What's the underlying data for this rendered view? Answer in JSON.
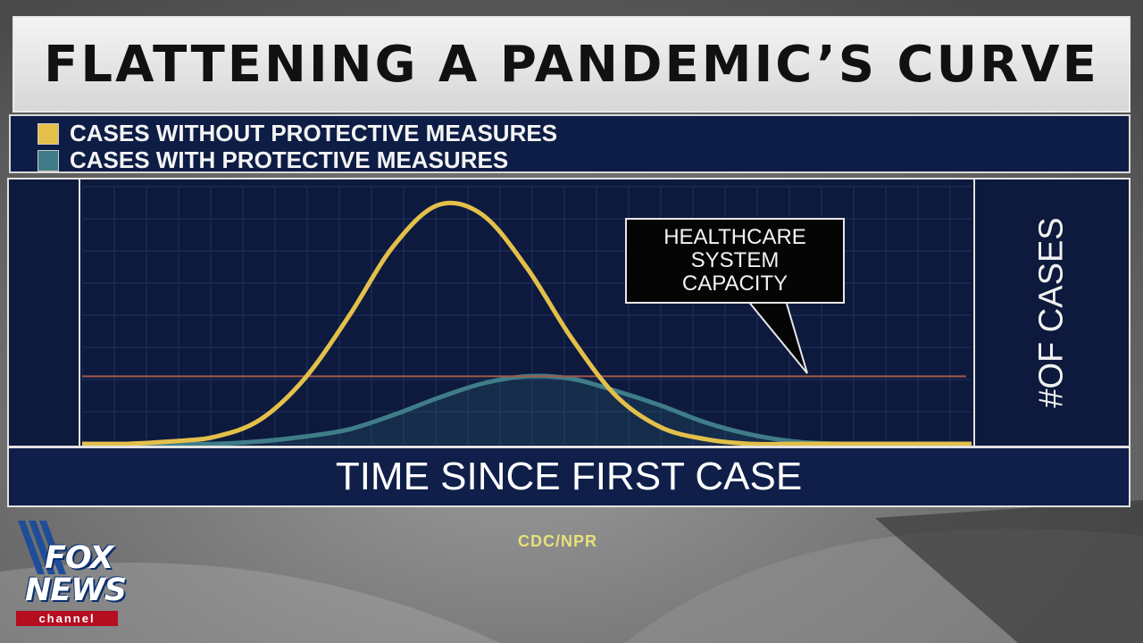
{
  "title": "FLATTENING A PANDEMIC’S CURVE",
  "legend": [
    {
      "label": "CASES WITHOUT PROTECTIVE MEASURES",
      "color": "#e4c04a"
    },
    {
      "label": "CASES WITH  PROTECTIVE MEASURES",
      "color": "#3f7d88"
    }
  ],
  "callout": {
    "text": "HEALTHCARE\nSYSTEM\nCAPACITY"
  },
  "source": "CDC/NPR",
  "logo": {
    "line1": "FOX",
    "line2": "NEWS",
    "line3": "channel"
  },
  "colors": {
    "panel": "#0d1a3d",
    "capacity_line": "#a05a4a",
    "grid": "#1f3160"
  },
  "chart_data": {
    "type": "area",
    "xlabel": "TIME SINCE FIRST CASE",
    "ylabel": "#OF CASES",
    "xlim": [
      0,
      100
    ],
    "ylim": [
      0,
      100
    ],
    "grid": true,
    "legend_position": "top-left",
    "x": [
      0,
      5,
      10,
      15,
      20,
      25,
      30,
      35,
      40,
      45,
      50,
      55,
      60,
      65,
      70,
      75,
      80,
      85,
      90,
      95,
      100
    ],
    "series": [
      {
        "name": "CASES WITHOUT PROTECTIVE MEASURES",
        "color": "#e4c04a",
        "values": [
          0,
          0,
          1,
          3,
          10,
          27,
          53,
          82,
          99,
          95,
          73,
          44,
          20,
          7,
          2,
          0,
          0,
          0,
          0,
          0,
          0
        ]
      },
      {
        "name": "CASES WITH  PROTECTIVE MEASURES",
        "color": "#3f7d88",
        "values": [
          0,
          0,
          0,
          0,
          1,
          3,
          6,
          12,
          19,
          25,
          28,
          27,
          22,
          16,
          9,
          4,
          1,
          0,
          0,
          0,
          0
        ]
      }
    ],
    "capacity": {
      "label": "HEALTHCARE SYSTEM CAPACITY",
      "value": 28
    }
  }
}
